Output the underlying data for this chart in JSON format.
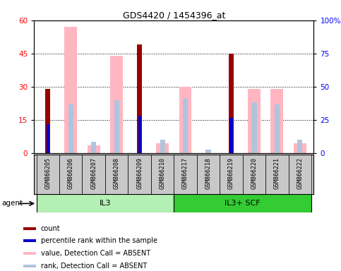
{
  "title": "GDS4420 / 1454396_at",
  "samples": [
    "GSM866205",
    "GSM866206",
    "GSM866207",
    "GSM866208",
    "GSM866209",
    "GSM866210",
    "GSM866217",
    "GSM866218",
    "GSM866219",
    "GSM866220",
    "GSM866221",
    "GSM866222"
  ],
  "groups": [
    {
      "label": "IL3",
      "start": 0,
      "end": 6,
      "color": "#b3f0b3"
    },
    {
      "label": "IL3+ SCF",
      "start": 6,
      "end": 12,
      "color": "#33cc33"
    }
  ],
  "count_values": [
    29,
    null,
    null,
    null,
    49,
    null,
    null,
    null,
    45,
    null,
    null,
    null
  ],
  "rank_values": [
    13,
    null,
    null,
    null,
    17,
    null,
    null,
    null,
    16,
    null,
    null,
    null
  ],
  "absent_value_bars": [
    null,
    57,
    3.5,
    44,
    null,
    4.5,
    30,
    null,
    null,
    29,
    29,
    4.5
  ],
  "absent_rank_bars": [
    null,
    22,
    5,
    24,
    null,
    6,
    25,
    1.5,
    null,
    23,
    22,
    6
  ],
  "left_ylim": [
    0,
    60
  ],
  "right_ylim": [
    0,
    100
  ],
  "left_yticks": [
    0,
    15,
    30,
    45,
    60
  ],
  "right_yticks": [
    0,
    25,
    50,
    75,
    100
  ],
  "right_yticklabels": [
    "0",
    "25",
    "50",
    "75",
    "100%"
  ],
  "count_color": "#990000",
  "rank_color": "#0000CC",
  "absent_value_color": "#FFB6C1",
  "absent_rank_color": "#B0C4DE",
  "agent_label": "agent",
  "legend_items": [
    {
      "color": "#990000",
      "label": "count"
    },
    {
      "color": "#0000CC",
      "label": "percentile rank within the sample"
    },
    {
      "color": "#FFB6C1",
      "label": "value, Detection Call = ABSENT"
    },
    {
      "color": "#B0C4DE",
      "label": "rank, Detection Call = ABSENT"
    }
  ]
}
